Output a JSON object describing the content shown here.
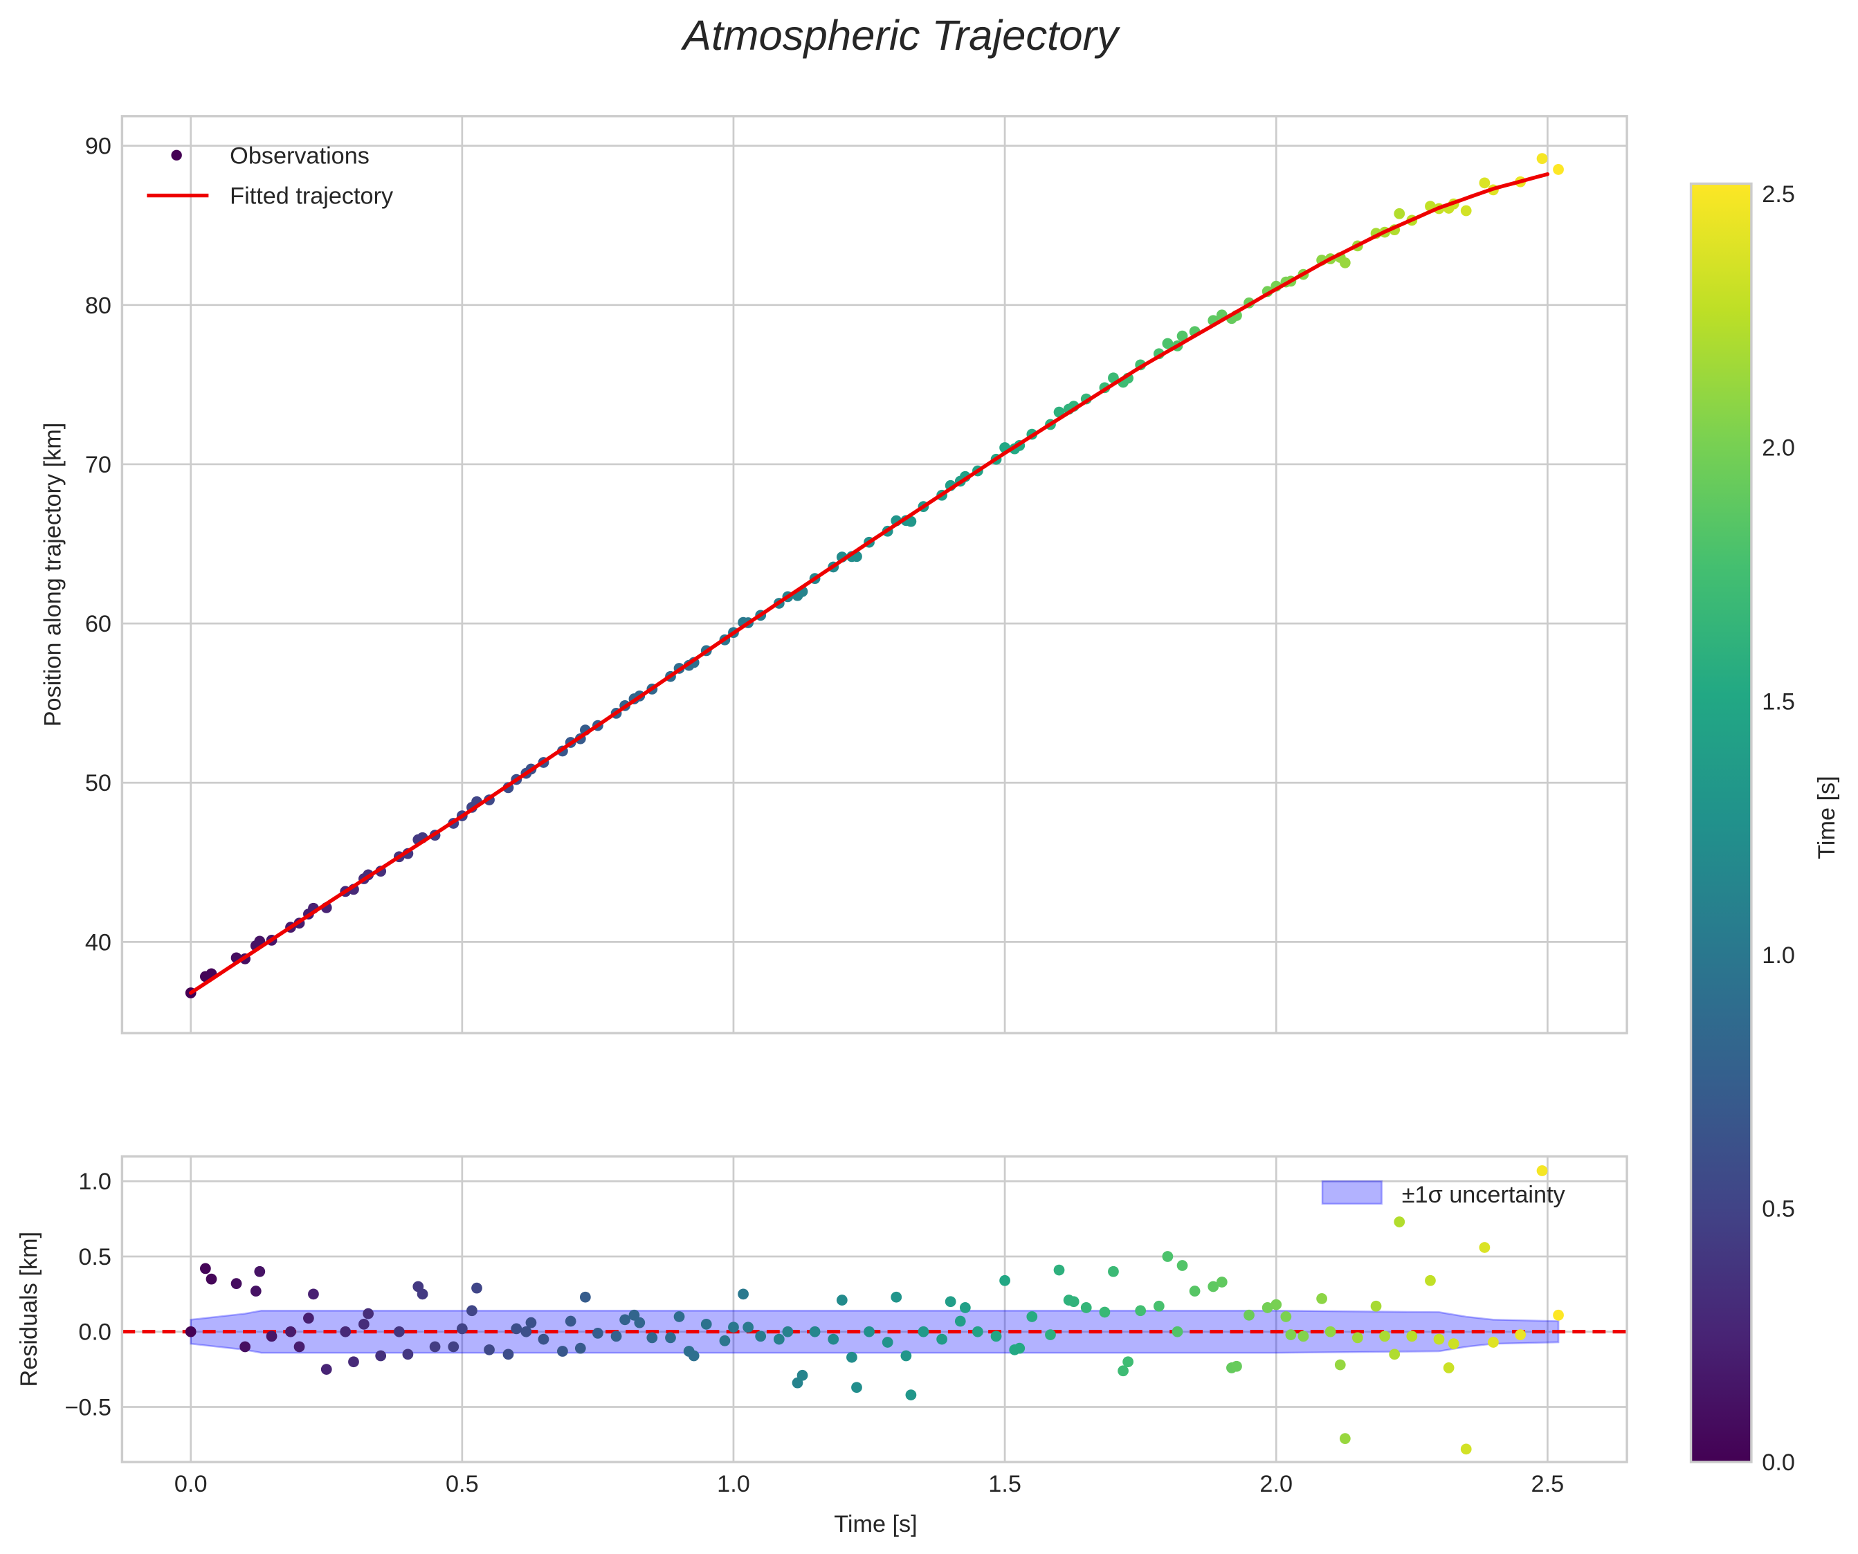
{
  "chart_data": [
    {
      "type": "scatter",
      "panel": "top",
      "title": "Atmospheric Trajectory",
      "xlabel": "",
      "ylabel": "Position along trajectory [km]",
      "xlim": [
        -0.125,
        2.645
      ],
      "ylim": [
        34.2,
        91.8
      ],
      "xticks": [
        0.0,
        0.5,
        1.0,
        1.5,
        2.0,
        2.5
      ],
      "yticks": [
        40,
        50,
        60,
        70,
        80,
        90
      ],
      "ytick_labels": [
        "40",
        "50",
        "60",
        "70",
        "80",
        "90"
      ],
      "grid": true,
      "legend": {
        "position": "upper left",
        "entries": [
          "Observations",
          "Fitted trajectory"
        ]
      },
      "fit_line": {
        "name": "Fitted trajectory",
        "color": "#ee0000",
        "x": [
          0.0,
          0.25,
          0.5,
          0.75,
          1.0,
          1.25,
          1.5,
          1.75,
          2.0,
          2.1,
          2.2,
          2.3,
          2.4,
          2.52
        ],
        "y": [
          36.8,
          42.4,
          47.9,
          53.6,
          59.4,
          65.1,
          70.7,
          76.1,
          81.0,
          82.9,
          84.6,
          86.1,
          87.3,
          88.4
        ]
      },
      "colormap": "viridis",
      "colorbar": {
        "label": "Time [s]",
        "range": [
          0.0,
          2.52
        ],
        "ticks": [
          "0.0",
          "0.5",
          "1.0",
          "1.5",
          "2.0",
          "2.5"
        ]
      }
    },
    {
      "type": "scatter",
      "panel": "bottom",
      "xlabel": "Time [s]",
      "ylabel": "Residuals [km]",
      "xlim": [
        -0.125,
        2.645
      ],
      "ylim": [
        -0.87,
        1.16
      ],
      "xticks": [
        0.0,
        0.5,
        1.0,
        1.5,
        2.0,
        2.5
      ],
      "xtick_labels": [
        "0.0",
        "0.5",
        "1.0",
        "1.5",
        "2.0",
        "2.5"
      ],
      "yticks": [
        -0.5,
        0.0,
        0.5,
        1.0
      ],
      "ytick_labels": [
        "−0.5",
        "0.0",
        "0.5",
        "1.0"
      ],
      "legend": {
        "position": "upper right",
        "entries": [
          "±1σ uncertainty"
        ]
      },
      "zero_line": {
        "y": 0.0,
        "style": "dashed",
        "color": "#ee0000"
      },
      "band": {
        "name": "±1σ uncertainty",
        "color": "#0000ff",
        "alpha": 0.3,
        "x": [
          0.0,
          0.05,
          0.1,
          0.13,
          0.2,
          0.5,
          1.0,
          1.5,
          2.0,
          2.3,
          2.35,
          2.4,
          2.52
        ],
        "half_width": [
          0.08,
          0.1,
          0.12,
          0.14,
          0.14,
          0.14,
          0.14,
          0.14,
          0.14,
          0.13,
          0.1,
          0.08,
          0.07
        ]
      },
      "residuals": [
        [
          0.0,
          0.0
        ],
        [
          0.027,
          0.42
        ],
        [
          0.038,
          0.35
        ],
        [
          0.084,
          0.32
        ],
        [
          0.1,
          -0.1
        ],
        [
          0.12,
          0.27
        ],
        [
          0.127,
          0.4
        ],
        [
          0.149,
          -0.03
        ],
        [
          0.184,
          0.0
        ],
        [
          0.2,
          -0.1
        ],
        [
          0.217,
          0.09
        ],
        [
          0.226,
          0.25
        ],
        [
          0.25,
          -0.25
        ],
        [
          0.285,
          0.0
        ],
        [
          0.3,
          -0.2
        ],
        [
          0.319,
          0.05
        ],
        [
          0.327,
          0.12
        ],
        [
          0.35,
          -0.16
        ],
        [
          0.384,
          0.0
        ],
        [
          0.4,
          -0.15
        ],
        [
          0.419,
          0.3
        ],
        [
          0.427,
          0.25
        ],
        [
          0.45,
          -0.1
        ],
        [
          0.484,
          -0.1
        ],
        [
          0.5,
          0.02
        ],
        [
          0.518,
          0.14
        ],
        [
          0.527,
          0.29
        ],
        [
          0.55,
          -0.12
        ],
        [
          0.585,
          -0.15
        ],
        [
          0.6,
          0.02
        ],
        [
          0.618,
          0.0
        ],
        [
          0.627,
          0.06
        ],
        [
          0.65,
          -0.05
        ],
        [
          0.685,
          -0.13
        ],
        [
          0.7,
          0.07
        ],
        [
          0.718,
          -0.11
        ],
        [
          0.727,
          0.23
        ],
        [
          0.75,
          -0.01
        ],
        [
          0.784,
          -0.03
        ],
        [
          0.8,
          0.08
        ],
        [
          0.817,
          0.11
        ],
        [
          0.827,
          0.06
        ],
        [
          0.85,
          -0.04
        ],
        [
          0.884,
          -0.04
        ],
        [
          0.9,
          0.1
        ],
        [
          0.918,
          -0.13
        ],
        [
          0.927,
          -0.16
        ],
        [
          0.95,
          0.05
        ],
        [
          0.984,
          -0.06
        ],
        [
          1.0,
          0.03
        ],
        [
          1.018,
          0.25
        ],
        [
          1.027,
          0.03
        ],
        [
          1.05,
          -0.03
        ],
        [
          1.084,
          -0.05
        ],
        [
          1.1,
          0.0
        ],
        [
          1.118,
          -0.34
        ],
        [
          1.127,
          -0.29
        ],
        [
          1.15,
          0.0
        ],
        [
          1.184,
          -0.05
        ],
        [
          1.2,
          0.21
        ],
        [
          1.218,
          -0.17
        ],
        [
          1.227,
          -0.37
        ],
        [
          1.25,
          0.0
        ],
        [
          1.284,
          -0.07
        ],
        [
          1.3,
          0.23
        ],
        [
          1.318,
          -0.16
        ],
        [
          1.327,
          -0.42
        ],
        [
          1.35,
          0.0
        ],
        [
          1.384,
          -0.05
        ],
        [
          1.4,
          0.2
        ],
        [
          1.418,
          0.07
        ],
        [
          1.427,
          0.16
        ],
        [
          1.45,
          0.0
        ],
        [
          1.484,
          -0.03
        ],
        [
          1.5,
          0.34
        ],
        [
          1.518,
          -0.12
        ],
        [
          1.527,
          -0.11
        ],
        [
          1.55,
          0.1
        ],
        [
          1.584,
          -0.02
        ],
        [
          1.6,
          0.41
        ],
        [
          1.618,
          0.21
        ],
        [
          1.627,
          0.2
        ],
        [
          1.65,
          0.16
        ],
        [
          1.684,
          0.13
        ],
        [
          1.7,
          0.4
        ],
        [
          1.718,
          -0.26
        ],
        [
          1.727,
          -0.2
        ],
        [
          1.75,
          0.14
        ],
        [
          1.784,
          0.17
        ],
        [
          1.8,
          0.5
        ],
        [
          1.818,
          0.0
        ],
        [
          1.827,
          0.44
        ],
        [
          1.85,
          0.27
        ],
        [
          1.884,
          0.3
        ],
        [
          1.9,
          0.33
        ],
        [
          1.918,
          -0.24
        ],
        [
          1.927,
          -0.23
        ],
        [
          1.95,
          0.11
        ],
        [
          1.984,
          0.16
        ],
        [
          2.0,
          0.18
        ],
        [
          2.018,
          0.1
        ],
        [
          2.027,
          -0.02
        ],
        [
          2.05,
          -0.03
        ],
        [
          2.084,
          0.22
        ],
        [
          2.1,
          0.0
        ],
        [
          2.118,
          -0.22
        ],
        [
          2.127,
          -0.71
        ],
        [
          2.15,
          -0.04
        ],
        [
          2.184,
          0.17
        ],
        [
          2.2,
          -0.03
        ],
        [
          2.218,
          -0.15
        ],
        [
          2.227,
          0.73
        ],
        [
          2.25,
          -0.03
        ],
        [
          2.284,
          0.34
        ],
        [
          2.3,
          -0.05
        ],
        [
          2.318,
          -0.24
        ],
        [
          2.327,
          -0.08
        ],
        [
          2.35,
          -0.78
        ],
        [
          2.384,
          0.56
        ],
        [
          2.4,
          -0.07
        ],
        [
          2.45,
          -0.02
        ],
        [
          2.49,
          1.07
        ],
        [
          2.52,
          0.11
        ]
      ]
    }
  ]
}
